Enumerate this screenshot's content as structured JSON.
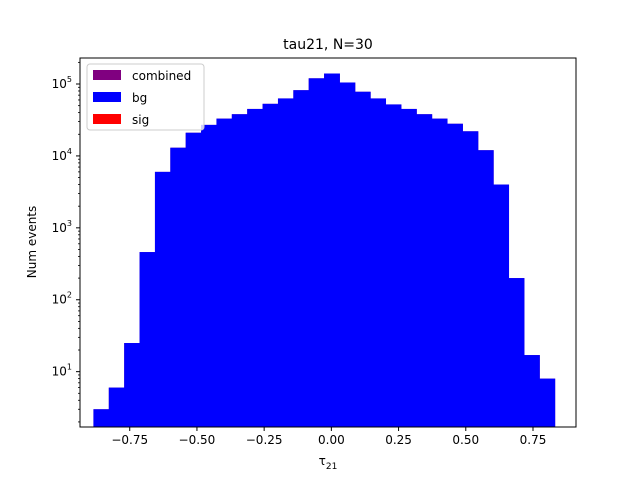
{
  "chart_data": {
    "type": "bar",
    "title": "tau21, N=30",
    "xlabel_base": "τ",
    "xlabel_sub": "21",
    "ylabel": "Num events",
    "yscale": "log",
    "xlim": [
      -0.935,
      0.91
    ],
    "ylim": [
      1.7,
      230000
    ],
    "xticks": [
      -0.75,
      -0.5,
      -0.25,
      0.0,
      0.25,
      0.5,
      0.75
    ],
    "xtick_labels": [
      "−0.75",
      "−0.50",
      "−0.25",
      "0.00",
      "0.25",
      "0.50",
      "0.75"
    ],
    "yticks": [
      10,
      100,
      1000,
      10000,
      100000
    ],
    "ytick_exponents": [
      "1",
      "2",
      "3",
      "4",
      "5"
    ],
    "bin_edges": [
      -0.885,
      -0.8278,
      -0.7706,
      -0.7134,
      -0.6562,
      -0.599,
      -0.5418,
      -0.4846,
      -0.4274,
      -0.3702,
      -0.313,
      -0.2558,
      -0.1986,
      -0.1414,
      -0.0842,
      -0.027,
      0.0302,
      0.0874,
      0.1446,
      0.2018,
      0.259,
      0.3162,
      0.3734,
      0.4306,
      0.4878,
      0.545,
      0.6022,
      0.6594,
      0.7166,
      0.7738,
      0.831
    ],
    "series": [
      {
        "name": "combined",
        "color": "#800080",
        "values": [
          3,
          6,
          25,
          460,
          6000,
          13000,
          21000,
          27000,
          33000,
          38000,
          45000,
          53000,
          63000,
          82000,
          120000,
          140000,
          105000,
          78000,
          63000,
          52000,
          45000,
          38000,
          33000,
          28000,
          22000,
          12000,
          4000,
          200,
          17,
          8
        ]
      },
      {
        "name": "bg",
        "color": "#0000ff",
        "values": [
          3,
          6,
          25,
          460,
          6000,
          13000,
          21000,
          27000,
          33000,
          38000,
          45000,
          53000,
          63000,
          82000,
          120000,
          140000,
          105000,
          78000,
          63000,
          52000,
          45000,
          38000,
          33000,
          28000,
          22000,
          12000,
          4000,
          200,
          17,
          8
        ]
      },
      {
        "name": "sig",
        "color": "#ff0000",
        "values": []
      }
    ],
    "legend_position": "upper-left",
    "grid": false
  }
}
